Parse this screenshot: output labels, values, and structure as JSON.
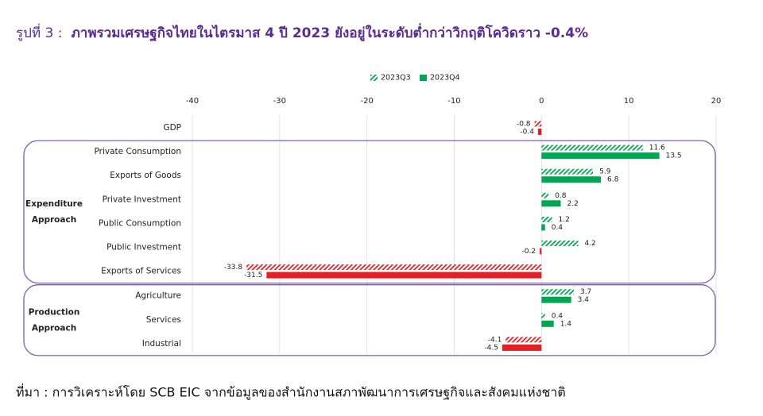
{
  "chart_data": {
    "type": "hbar",
    "title_label": "รูปที่ 3 :",
    "title": "ภาพรวมเศรษฐกิจไทยในไตรมาส 4 ปี 2023 ยังอยู่ในระดับต่ำกว่าวิกฤติโควิดราว -0.4%",
    "source": "ที่มา : การวิเคราะห์โดย SCB EIC จากข้อมูลของสำนักงานสภาพัฒนาการเศรษฐกิจและสังคมแห่งชาติ",
    "categories": [
      "GDP",
      "Private Consumption",
      "Exports of Goods",
      "Private Investment",
      "Public Consumption",
      "Public Investment",
      "Exports of Services",
      "Agriculture",
      "Services",
      "Industrial"
    ],
    "groups": [
      {
        "name": "Expenditure Approach",
        "from": 1,
        "to": 6
      },
      {
        "name": "Production Approach",
        "from": 7,
        "to": 9
      }
    ],
    "series": [
      {
        "name": "2023Q3",
        "color": "#00a651",
        "negative_color": "#e31e24",
        "hatched": true,
        "values": [
          -0.8,
          11.6,
          5.9,
          0.8,
          1.2,
          4.2,
          -33.8,
          3.7,
          0.4,
          -4.1
        ]
      },
      {
        "name": "2023Q4",
        "color": "#00a651",
        "negative_color": "#e31e24",
        "hatched": false,
        "values": [
          -0.4,
          13.5,
          6.8,
          2.2,
          0.4,
          -0.2,
          -31.5,
          3.4,
          1.4,
          -4.5
        ]
      }
    ],
    "xlim": [
      -40,
      20
    ],
    "xticks": [
      -40,
      -30,
      -20,
      -10,
      0,
      10,
      20
    ],
    "grid": true,
    "legend": "top"
  }
}
